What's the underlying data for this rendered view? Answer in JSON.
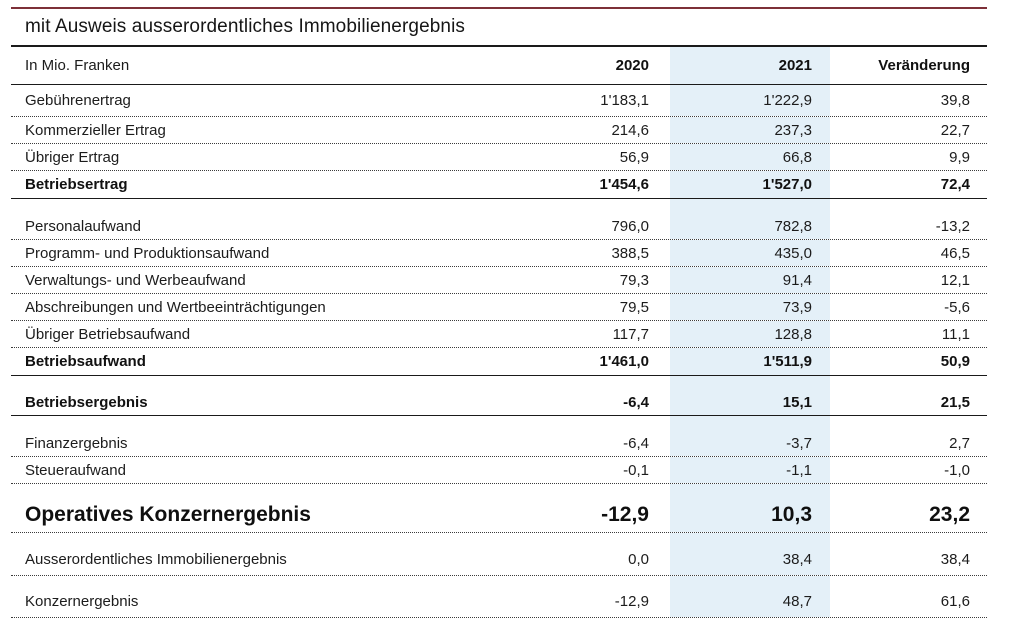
{
  "title": "mit Ausweis ausserordentliches Immobilienergebnis",
  "colors": {
    "accent_rule_red": "#7d3038",
    "highlight_column_blue": "#e4f0f8"
  },
  "table": {
    "unit_label": "In Mio. Franken",
    "columns": [
      "2020",
      "2021",
      "Veränderung"
    ],
    "highlighted_column": "2021",
    "rows": [
      {
        "style": "std",
        "label": "Gebührenertrag",
        "v2020": "1'183,1",
        "v2021": "1'222,9",
        "change": "39,8"
      },
      {
        "style": "std",
        "label": "Kommerzieller Ertrag",
        "v2020": "214,6",
        "v2021": "237,3",
        "change": "22,7"
      },
      {
        "style": "std",
        "label": "Übriger Ertrag",
        "v2020": "56,9",
        "v2021": "66,8",
        "change": "9,9"
      },
      {
        "style": "subtotal",
        "label": "Betriebsertrag",
        "v2020": "1'454,6",
        "v2021": "1'527,0",
        "change": "72,4"
      },
      {
        "style": "gap",
        "label": "",
        "v2020": "",
        "v2021": "",
        "change": ""
      },
      {
        "style": "std",
        "label": "Personalaufwand",
        "v2020": "796,0",
        "v2021": "782,8",
        "change": "-13,2"
      },
      {
        "style": "std",
        "label": "Programm- und Produktionsaufwand",
        "v2020": "388,5",
        "v2021": "435,0",
        "change": "46,5"
      },
      {
        "style": "std",
        "label": "Verwaltungs- und Werbeaufwand",
        "v2020": "79,3",
        "v2021": "91,4",
        "change": "12,1"
      },
      {
        "style": "std",
        "label": "Abschreibungen und Wertbeeinträchtigungen",
        "v2020": "79,5",
        "v2021": "73,9",
        "change": "-5,6"
      },
      {
        "style": "std",
        "label": "Übriger Betriebsaufwand",
        "v2020": "117,7",
        "v2021": "128,8",
        "change": "11,1"
      },
      {
        "style": "subtotal",
        "label": "Betriebsaufwand",
        "v2020": "1'461,0",
        "v2021": "1'511,9",
        "change": "50,9"
      },
      {
        "style": "gap",
        "label": "",
        "v2020": "",
        "v2021": "",
        "change": ""
      },
      {
        "style": "subtotal slim",
        "label": "Betriebsergebnis",
        "v2020": "-6,4",
        "v2021": "15,1",
        "change": "21,5"
      },
      {
        "style": "gap",
        "label": "",
        "v2020": "",
        "v2021": "",
        "change": ""
      },
      {
        "style": "std",
        "label": "Finanzergebnis",
        "v2020": "-6,4",
        "v2021": "-3,7",
        "change": "2,7"
      },
      {
        "style": "std",
        "label": "Steueraufwand",
        "v2020": "-0,1",
        "v2021": "-1,1",
        "change": "-1,0"
      },
      {
        "style": "gap",
        "label": "",
        "v2020": "",
        "v2021": "",
        "change": ""
      },
      {
        "style": "total",
        "label": "Operatives Konzernergebnis",
        "v2020": "-12,9",
        "v2021": "10,3",
        "change": "23,2"
      },
      {
        "style": "tall",
        "label": "Ausserordentliches Immobilienergebnis",
        "v2020": "0,0",
        "v2021": "38,4",
        "change": "38,4"
      },
      {
        "style": "tall last",
        "label": "Konzernergebnis",
        "v2020": "-12,9",
        "v2021": "48,7",
        "change": "61,6"
      }
    ]
  }
}
